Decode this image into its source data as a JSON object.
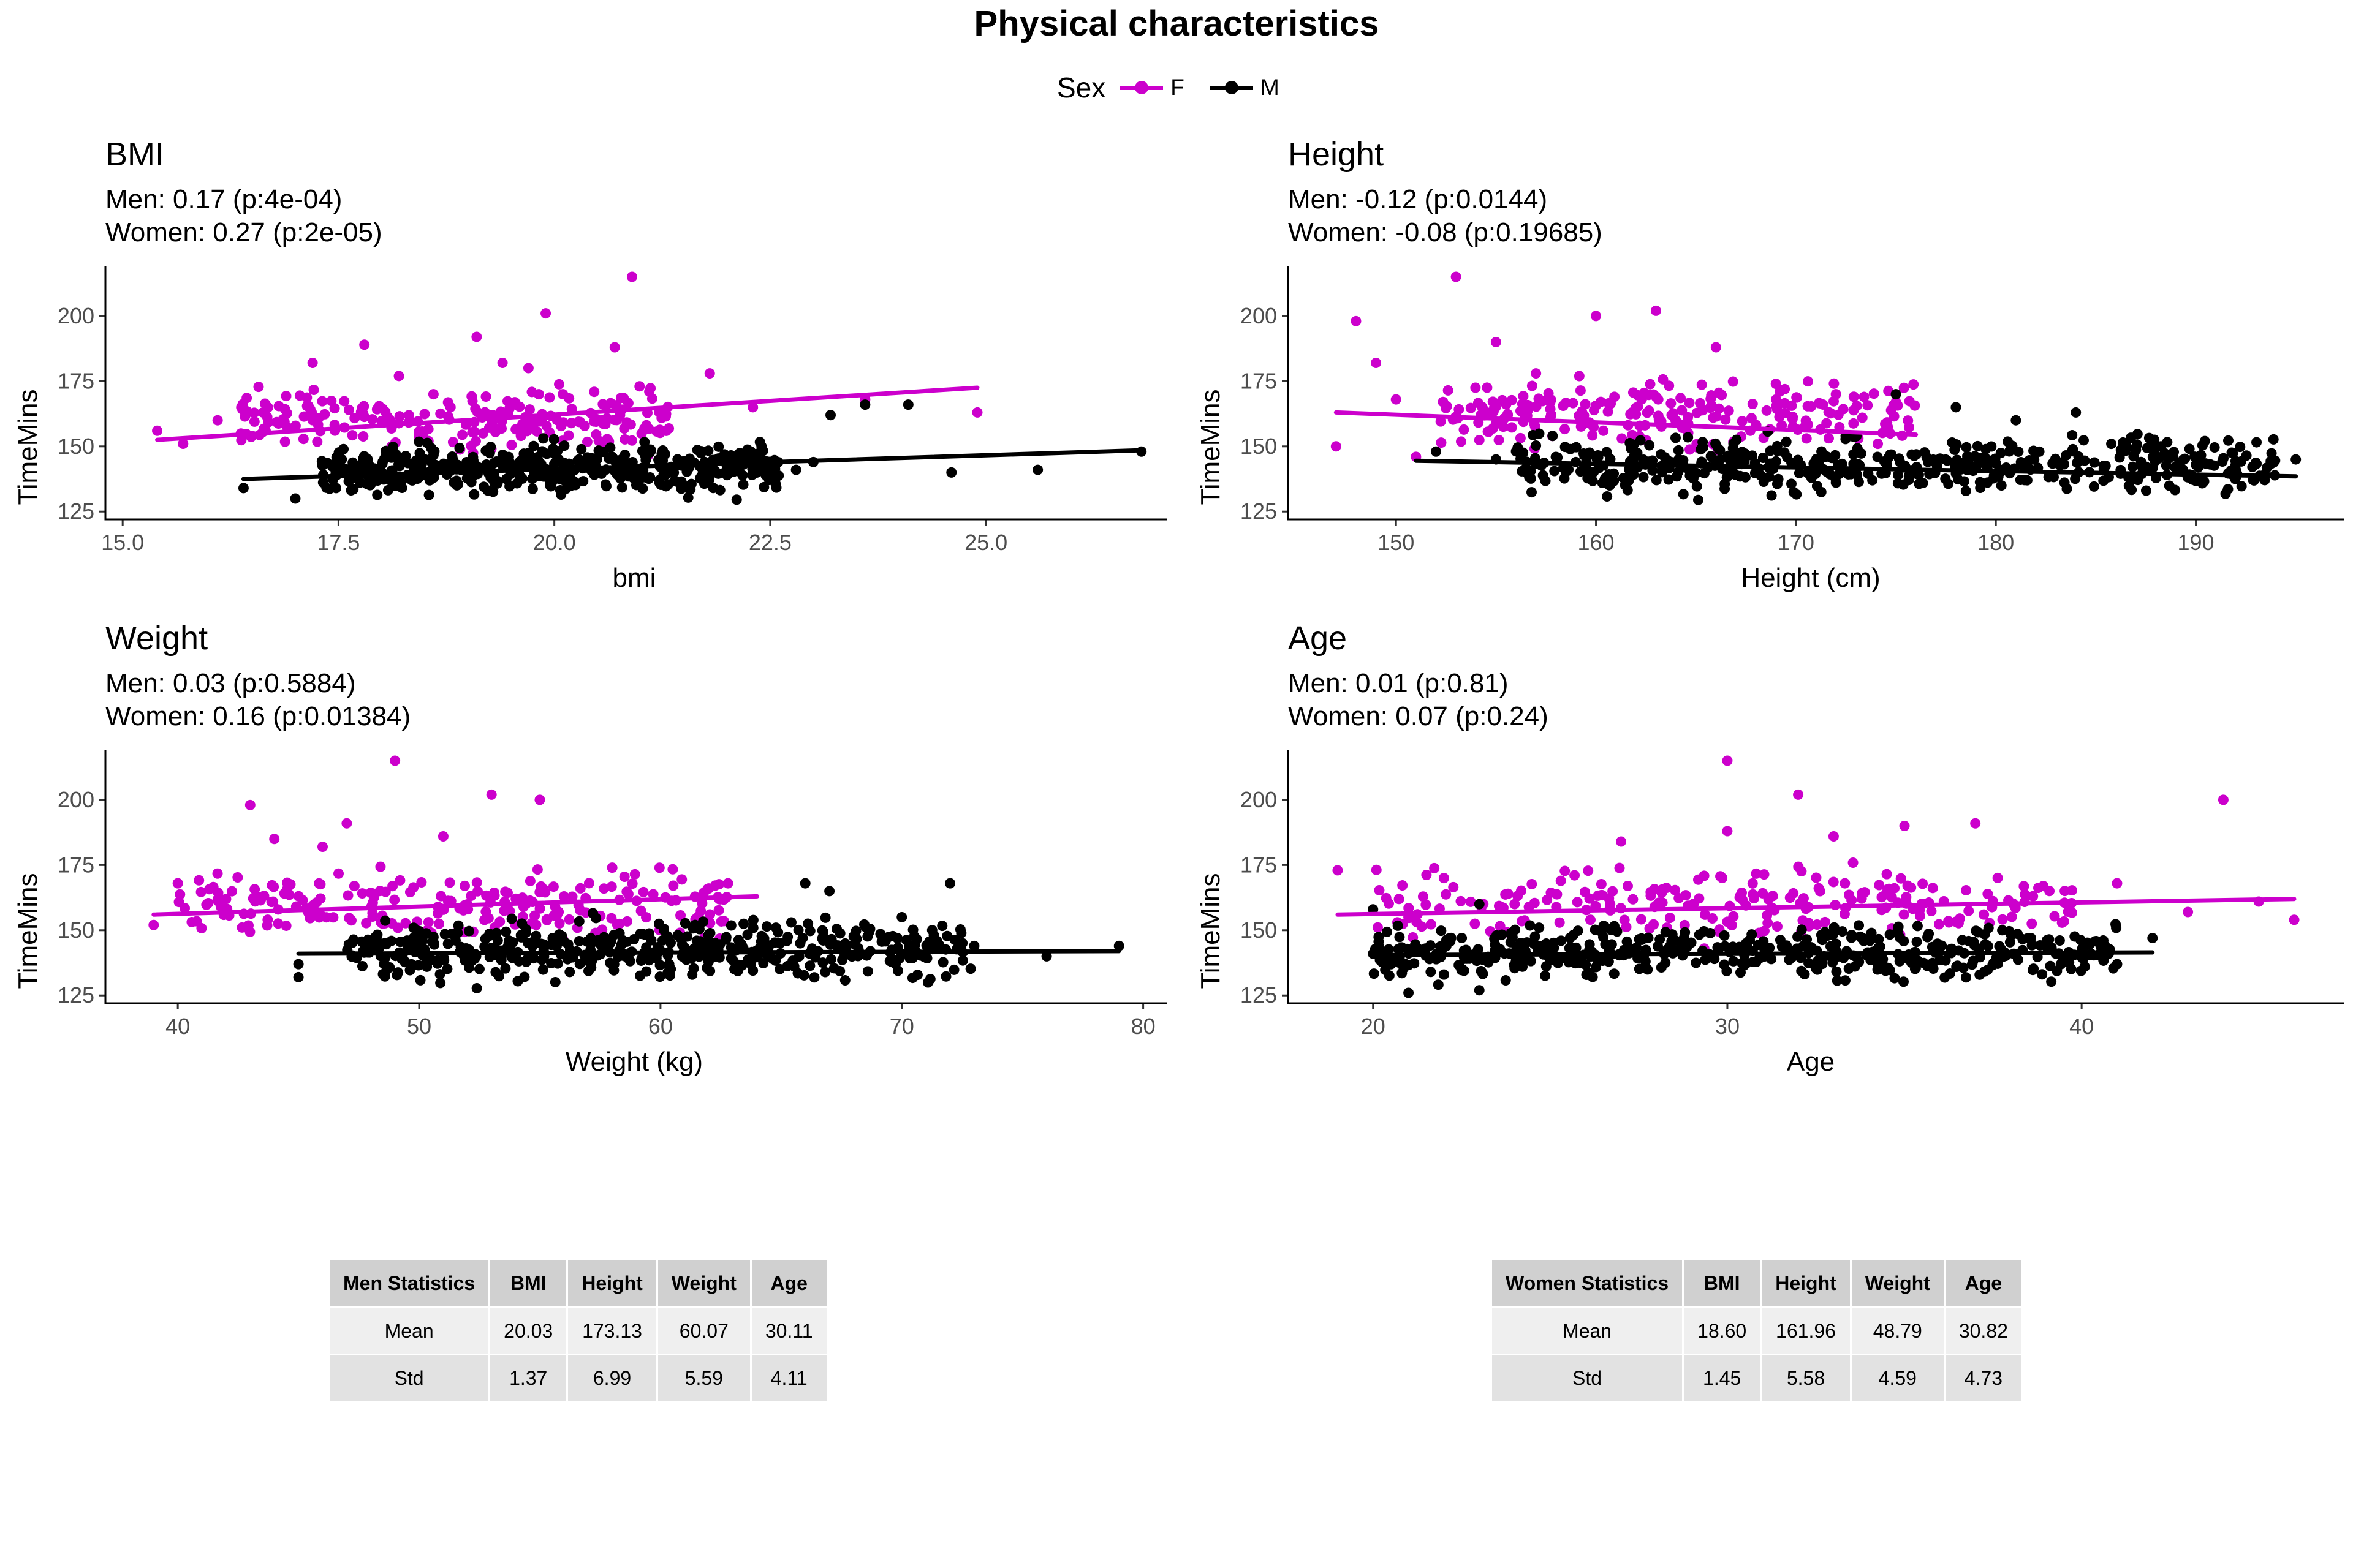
{
  "title": "Physical characteristics",
  "legend": {
    "title": "Sex",
    "items": [
      {
        "label": "F",
        "color": "#cc00cc"
      },
      {
        "label": "M",
        "color": "#000000"
      }
    ]
  },
  "colors": {
    "F": "#cc00cc",
    "M": "#000000"
  },
  "chart_data": [
    {
      "type": "scatter",
      "title": "BMI",
      "subtitle_men": "Men: 0.17 (p:4e-04)",
      "subtitle_women": "Women: 0.27 (p:2e-05)",
      "xlabel": "bmi",
      "ylabel": "TimeMins",
      "xlim": [
        14.8,
        27.1
      ],
      "ylim": [
        122,
        219
      ],
      "xticks": [
        15.0,
        17.5,
        20.0,
        22.5,
        25.0
      ],
      "xtick_labels": [
        "15.0",
        "17.5",
        "20.0",
        "22.5",
        "25.0"
      ],
      "yticks": [
        125,
        150,
        175,
        200
      ],
      "series": [
        {
          "name": "F",
          "color": "#cc00cc",
          "trend": {
            "x": [
              15.4,
              24.9
            ],
            "y": [
              152.5,
              172.5
            ]
          },
          "n": 240,
          "points": [
            [
              15.4,
              156
            ],
            [
              15.7,
              151
            ],
            [
              16.1,
              160
            ],
            [
              16.5,
              154
            ],
            [
              17.2,
              182
            ],
            [
              17.8,
              189
            ],
            [
              18.2,
              177
            ],
            [
              18.6,
              170
            ],
            [
              19.1,
              192
            ],
            [
              19.7,
              180
            ],
            [
              20.1,
              170
            ],
            [
              20.7,
              188
            ],
            [
              21.1,
              171
            ],
            [
              21.8,
              178
            ],
            [
              22.3,
              165
            ],
            [
              23.6,
              168
            ],
            [
              24.9,
              163
            ],
            [
              20.9,
              215
            ],
            [
              19.9,
              201
            ],
            [
              19.4,
              182
            ]
          ],
          "cloud": {
            "x": [
              16.3,
              21.5
            ],
            "y": [
              145,
              175
            ]
          }
        },
        {
          "name": "M",
          "color": "#000000",
          "trend": {
            "x": [
              16.4,
              26.8
            ],
            "y": [
              137.5,
              148.5
            ]
          },
          "n": 480,
          "points": [
            [
              16.4,
              134
            ],
            [
              17.0,
              130
            ],
            [
              22.8,
              141
            ],
            [
              23.2,
              162
            ],
            [
              23.6,
              166
            ],
            [
              24.1,
              166
            ],
            [
              24.6,
              140
            ],
            [
              25.6,
              141
            ],
            [
              26.8,
              148
            ],
            [
              22.4,
              150
            ],
            [
              23.0,
              144
            ]
          ],
          "cloud": {
            "x": [
              17.3,
              22.6
            ],
            "y": [
              128,
              155
            ]
          }
        }
      ]
    },
    {
      "type": "scatter",
      "title": "Height",
      "subtitle_men": "Men: -0.12 (p:0.0144)",
      "subtitle_women": "Women: -0.08 (p:0.19685)",
      "xlabel": "Height (cm)",
      "ylabel": "TimeMins",
      "xlim": [
        144.6,
        197.4
      ],
      "ylim": [
        122,
        219
      ],
      "xticks": [
        150,
        160,
        170,
        180,
        190
      ],
      "xtick_labels": [
        "150",
        "160",
        "170",
        "180",
        "190"
      ],
      "yticks": [
        125,
        150,
        175,
        200
      ],
      "series": [
        {
          "name": "F",
          "color": "#cc00cc",
          "trend": {
            "x": [
              147,
              176
            ],
            "y": [
              163,
              154.5
            ]
          },
          "n": 240,
          "points": [
            [
              147,
              150
            ],
            [
              148,
              198
            ],
            [
              149,
              182
            ],
            [
              150,
              168
            ],
            [
              151,
              146
            ],
            [
              153,
              215
            ],
            [
              155,
              190
            ],
            [
              157,
              178
            ],
            [
              160,
              200
            ],
            [
              163,
              202
            ],
            [
              166,
              188
            ],
            [
              169,
              174
            ],
            [
              172,
              170
            ],
            [
              175,
              167
            ]
          ],
          "cloud": {
            "x": [
              152,
              176
            ],
            "y": [
              145,
              180
            ]
          }
        },
        {
          "name": "M",
          "color": "#000000",
          "trend": {
            "x": [
              151,
              195
            ],
            "y": [
              144.5,
              138.5
            ]
          },
          "n": 480,
          "points": [
            [
              152,
              148
            ],
            [
              155,
              145
            ],
            [
              175,
              170
            ],
            [
              178,
              165
            ],
            [
              181,
              160
            ],
            [
              184,
              163
            ],
            [
              188,
              150
            ],
            [
              190,
              143
            ],
            [
              192,
              141
            ],
            [
              195,
              145
            ]
          ],
          "cloud": {
            "x": [
              156,
              194
            ],
            "y": [
              128,
              158
            ]
          }
        }
      ]
    },
    {
      "type": "scatter",
      "title": "Weight",
      "subtitle_men": "Men: 0.03 (p:0.5884)",
      "subtitle_women": "Women: 0.16 (p:0.01384)",
      "xlabel": "Weight (kg)",
      "ylabel": "TimeMins",
      "xlim": [
        37.0,
        81.0
      ],
      "ylim": [
        122,
        219
      ],
      "xticks": [
        40,
        50,
        60,
        70,
        80
      ],
      "xtick_labels": [
        "40",
        "50",
        "60",
        "70",
        "80"
      ],
      "yticks": [
        125,
        150,
        175,
        200
      ],
      "series": [
        {
          "name": "F",
          "color": "#cc00cc",
          "trend": {
            "x": [
              39,
              64
            ],
            "y": [
              156,
              163
            ]
          },
          "n": 240,
          "points": [
            [
              39,
              152
            ],
            [
              40,
              168
            ],
            [
              42,
              162
            ],
            [
              43,
              198
            ],
            [
              44,
              185
            ],
            [
              46,
              182
            ],
            [
              47,
              191
            ],
            [
              49,
              215
            ],
            [
              51,
              186
            ],
            [
              53,
              202
            ],
            [
              55,
              200
            ],
            [
              58,
              174
            ],
            [
              62,
              166
            ]
          ],
          "cloud": {
            "x": [
              40,
              63
            ],
            "y": [
              143,
              178
            ]
          }
        },
        {
          "name": "M",
          "color": "#000000",
          "trend": {
            "x": [
              45,
              79
            ],
            "y": [
              141,
              142
            ]
          },
          "n": 480,
          "points": [
            [
              45,
              132
            ],
            [
              45,
              137
            ],
            [
              66,
              168
            ],
            [
              67,
              165
            ],
            [
              70,
              155
            ],
            [
              72,
              168
            ],
            [
              73,
              144
            ],
            [
              76,
              140
            ],
            [
              79,
              144
            ]
          ],
          "cloud": {
            "x": [
              47,
              73
            ],
            "y": [
              127,
              158
            ]
          }
        }
      ]
    },
    {
      "type": "scatter",
      "title": "Age",
      "subtitle_men": "Men: 0.01 (p:0.81)",
      "subtitle_women": "Women: 0.07 (p:0.24)",
      "xlabel": "Age",
      "ylabel": "TimeMins",
      "xlim": [
        17.6,
        47.4
      ],
      "ylim": [
        122,
        219
      ],
      "xticks": [
        20,
        30,
        40
      ],
      "xtick_labels": [
        "20",
        "30",
        "40"
      ],
      "yticks": [
        125,
        150,
        175,
        200
      ],
      "series": [
        {
          "name": "F",
          "color": "#cc00cc",
          "trend": {
            "x": [
              19,
              46
            ],
            "y": [
              156,
              162
            ]
          },
          "n": 240,
          "points": [
            [
              19,
              173
            ],
            [
              21,
              155
            ],
            [
              22,
              170
            ],
            [
              27,
              184
            ],
            [
              30,
              188
            ],
            [
              30,
              215
            ],
            [
              32,
              202
            ],
            [
              33,
              186
            ],
            [
              35,
              190
            ],
            [
              37,
              191
            ],
            [
              41,
              168
            ],
            [
              44,
              200
            ],
            [
              46,
              154
            ],
            [
              45,
              161
            ],
            [
              43,
              157
            ]
          ],
          "cloud": {
            "x": [
              20,
              40
            ],
            "y": [
              142,
              178
            ]
          }
        },
        {
          "name": "M",
          "color": "#000000",
          "trend": {
            "x": [
              20,
              42
            ],
            "y": [
              140.5,
              141.5
            ]
          },
          "n": 480,
          "points": [
            [
              20,
              158
            ],
            [
              20,
              141
            ],
            [
              21,
              126
            ],
            [
              22,
              133
            ],
            [
              23,
              127
            ],
            [
              23,
              160
            ],
            [
              41,
              137
            ],
            [
              42,
              147
            ]
          ],
          "cloud": {
            "x": [
              20,
              41
            ],
            "y": [
              127,
              156
            ]
          }
        }
      ]
    }
  ],
  "tables": [
    {
      "headers": [
        "Men Statistics",
        "BMI",
        "Height",
        "Weight",
        "Age"
      ],
      "rows": [
        [
          "Mean",
          "20.03",
          "173.13",
          "60.07",
          "30.11"
        ],
        [
          "Std",
          "1.37",
          "6.99",
          "5.59",
          "4.11"
        ]
      ]
    },
    {
      "headers": [
        "Women Statistics",
        "BMI",
        "Height",
        "Weight",
        "Age"
      ],
      "rows": [
        [
          "Mean",
          "18.60",
          "161.96",
          "48.79",
          "30.82"
        ],
        [
          "Std",
          "1.45",
          "5.58",
          "4.59",
          "4.73"
        ]
      ]
    }
  ]
}
